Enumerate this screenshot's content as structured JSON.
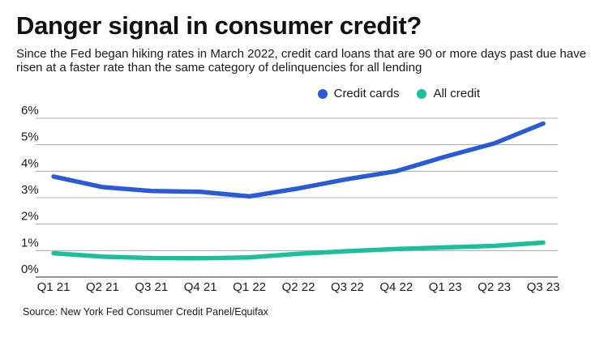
{
  "chart_data": {
    "type": "line",
    "title": "Danger signal in consumer credit?",
    "subtitle": "Since the Fed began hiking rates in March 2022, credit card loans that are 90 or more days past due have risen at a faster rate than the same category of delinquencies for all lending",
    "categories": [
      "Q1 21",
      "Q2 21",
      "Q3 21",
      "Q4 21",
      "Q1 22",
      "Q2 22",
      "Q3 22",
      "Q4 22",
      "Q1 23",
      "Q2 23",
      "Q3 23"
    ],
    "series": [
      {
        "name": "Credit cards",
        "color": "#2a5bd7",
        "values": [
          3.8,
          3.4,
          3.25,
          3.22,
          3.05,
          3.35,
          3.7,
          4.0,
          4.55,
          5.05,
          5.8
        ]
      },
      {
        "name": "All credit",
        "color": "#1bbf9c",
        "values": [
          0.9,
          0.77,
          0.72,
          0.71,
          0.74,
          0.88,
          0.98,
          1.06,
          1.12,
          1.18,
          1.3
        ]
      }
    ],
    "y_ticks": [
      "6%",
      "5%",
      "4%",
      "3%",
      "2%",
      "1%",
      "0%"
    ],
    "ylim": [
      0,
      6
    ],
    "xlabel": "",
    "ylabel": "",
    "grid": true,
    "legend": "top-right",
    "source": "Source: New York Fed Consumer Credit Panel/Equifax"
  }
}
